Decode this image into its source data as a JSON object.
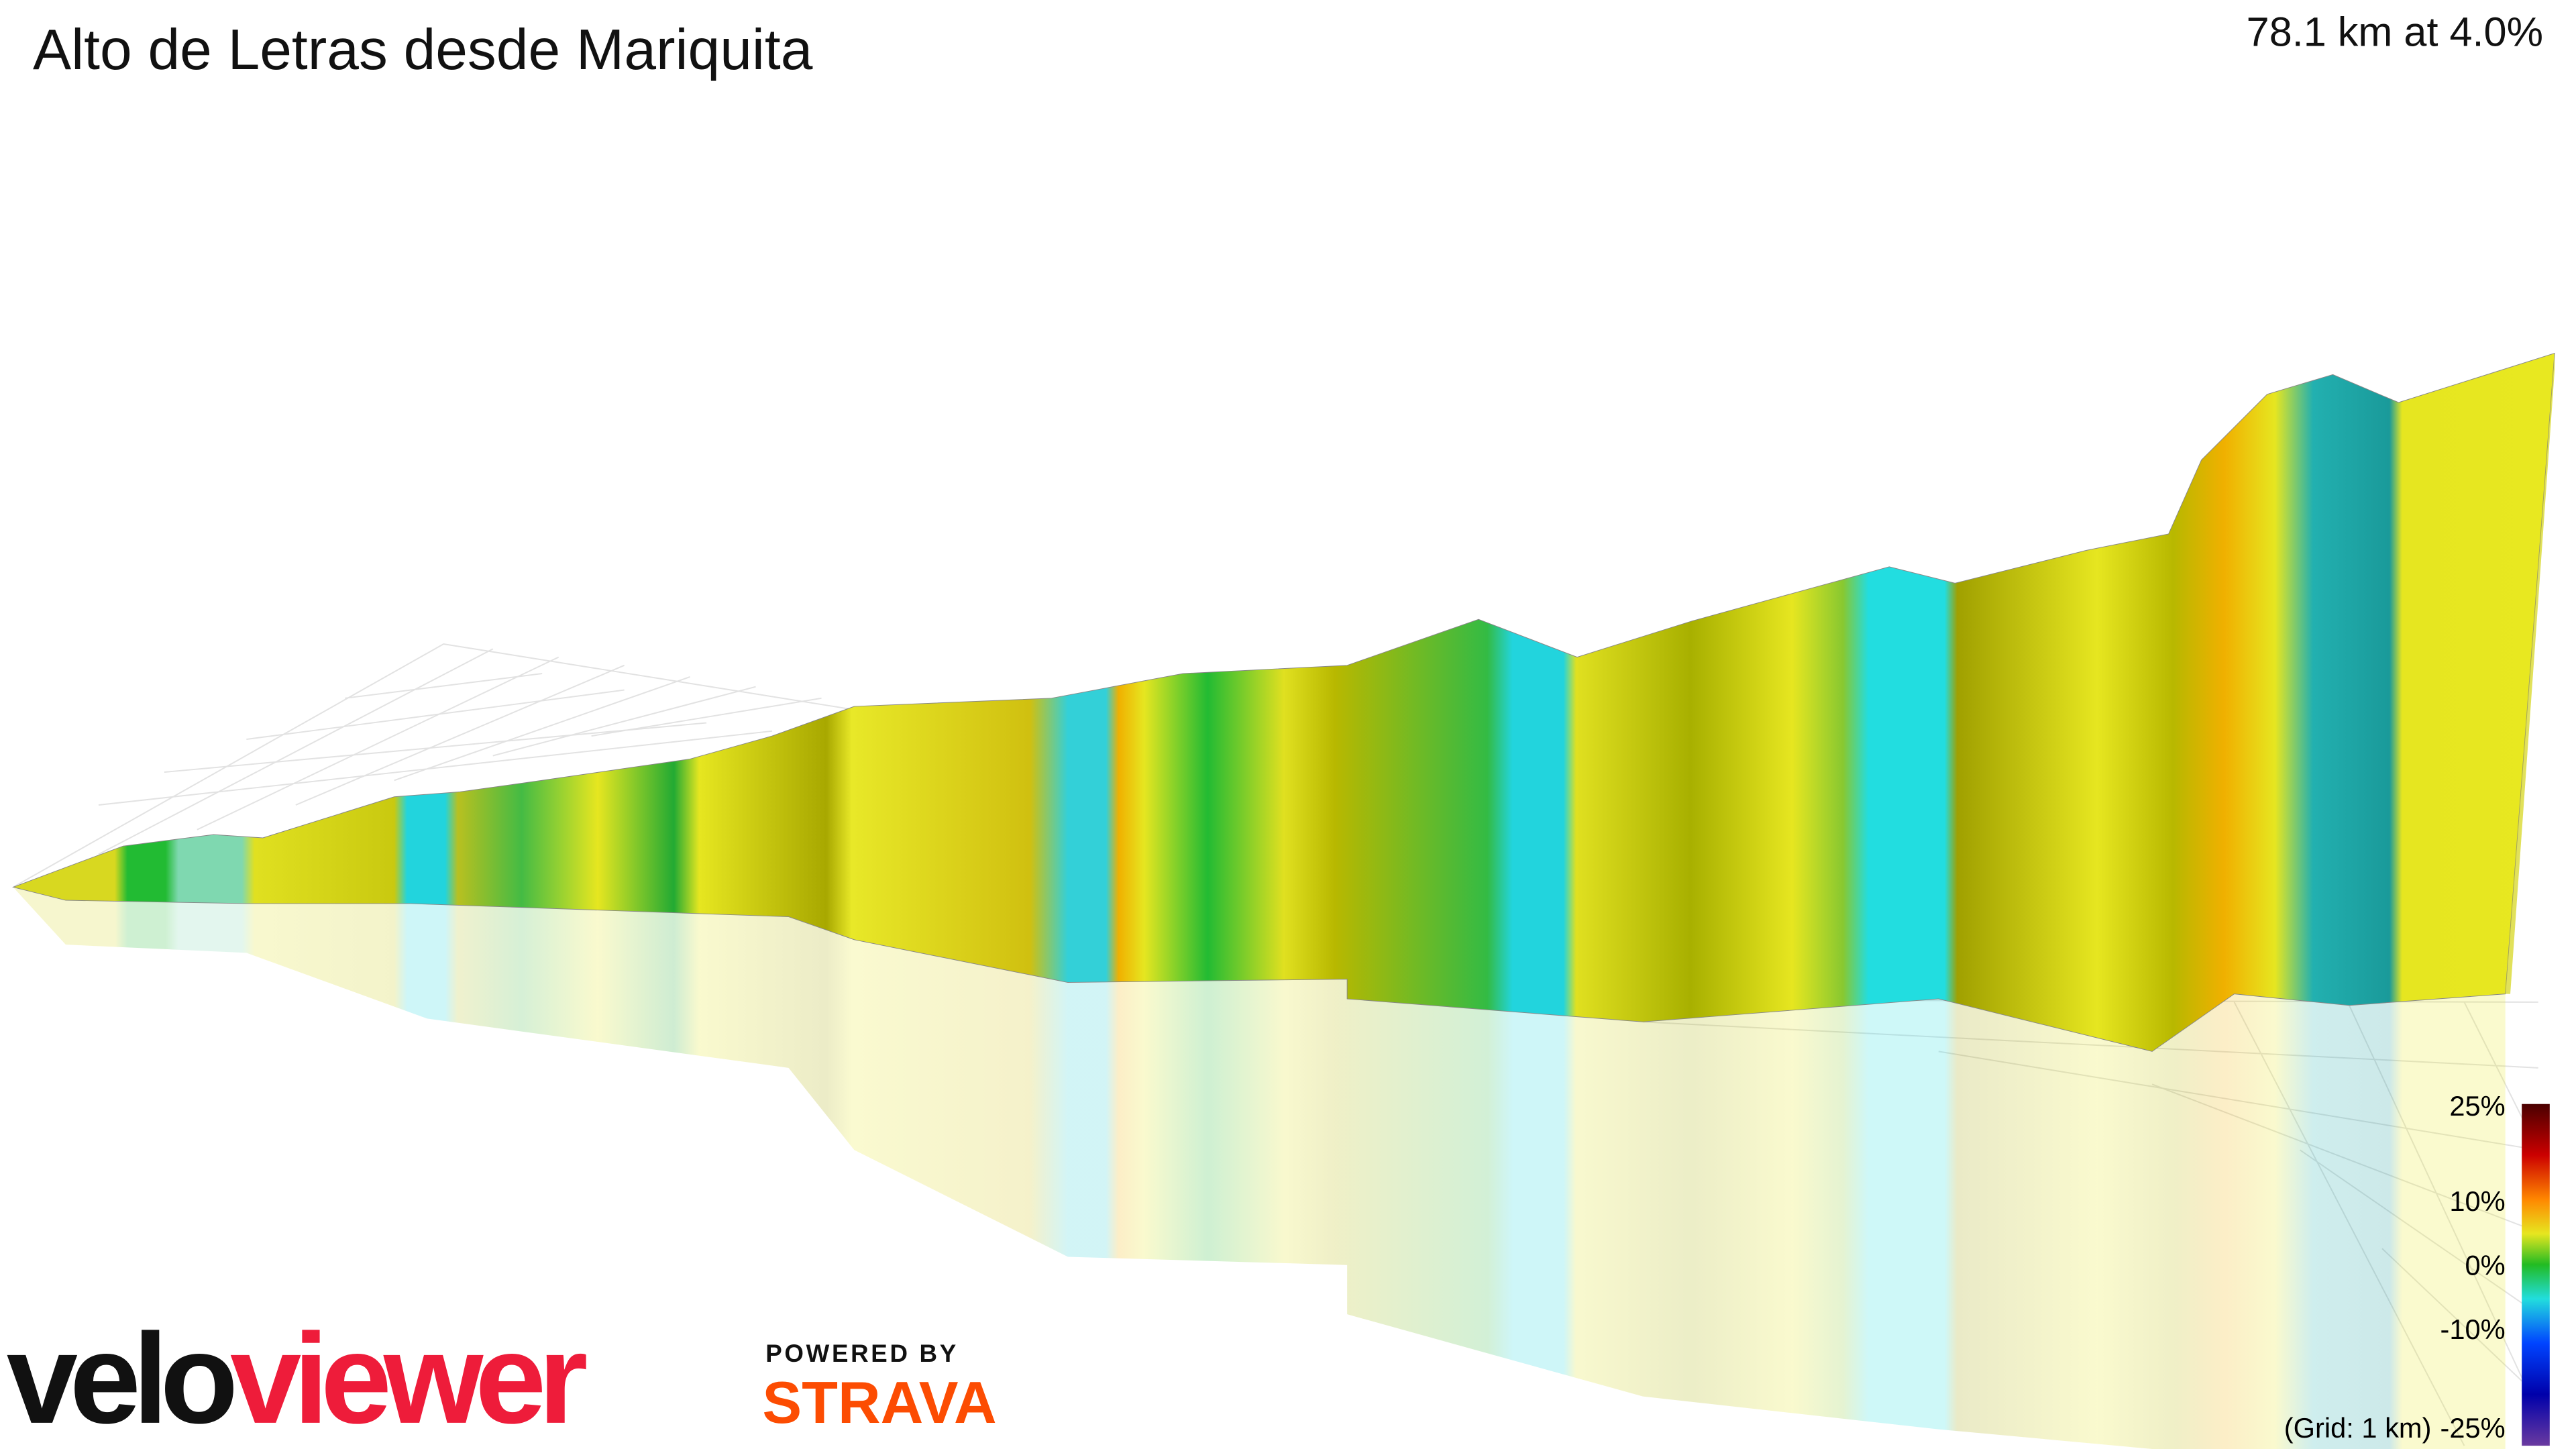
{
  "header": {
    "title": "Alto de Letras desde Mariquita",
    "stats": "78.1 km at 4.0%"
  },
  "legend": {
    "labels": [
      "25%",
      "10%",
      "0%",
      "-10%",
      "-25%"
    ],
    "note": "(Grid: 1 km)"
  },
  "branding": {
    "velo": "velo",
    "viewer": "viewer",
    "powered_by": "POWERED BY",
    "strava": "STRAVA"
  }
}
